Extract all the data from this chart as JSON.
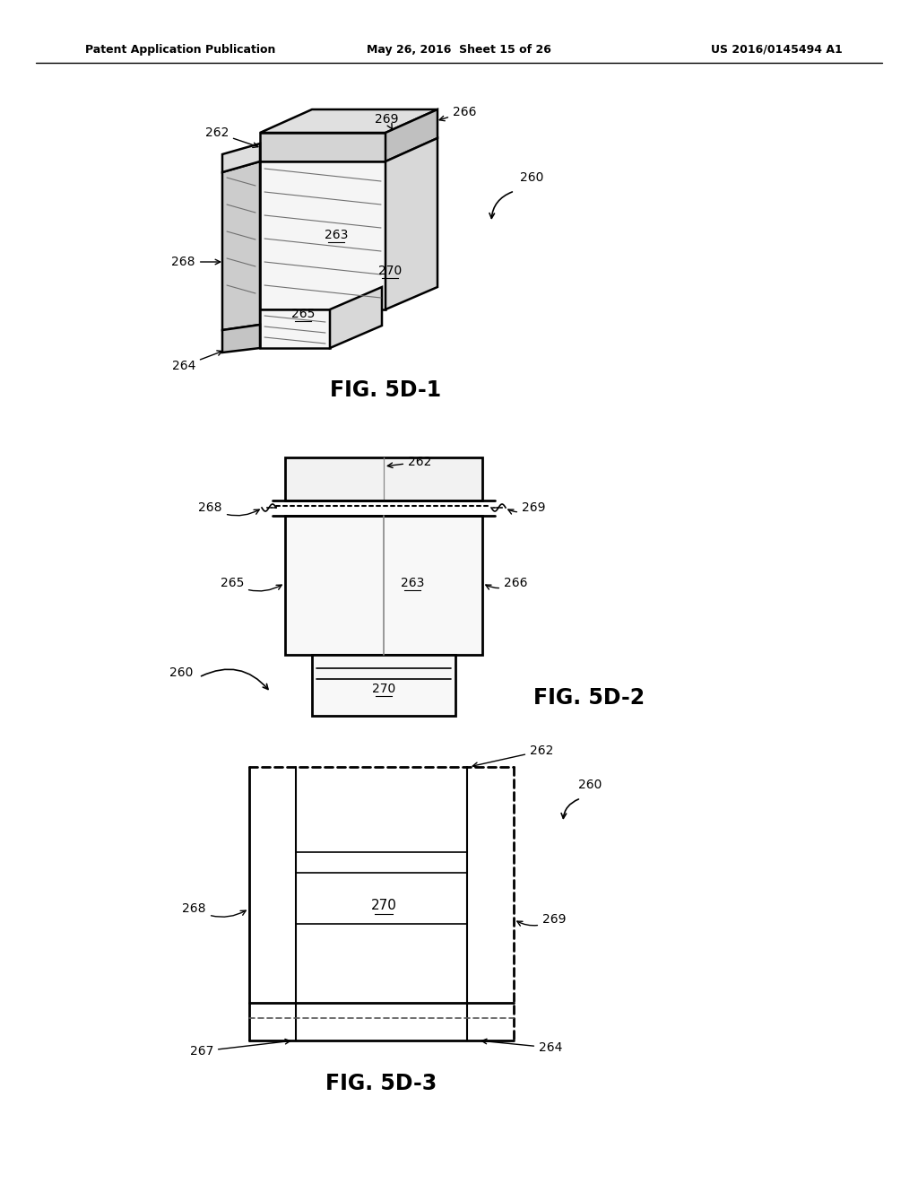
{
  "title_left": "Patent Application Publication",
  "title_mid": "May 26, 2016  Sheet 15 of 26",
  "title_right": "US 2016/0145494 A1",
  "fig1_label": "FIG. 5D-1",
  "fig2_label": "FIG. 5D-2",
  "fig3_label": "FIG. 5D-3",
  "bg_color": "#ffffff",
  "line_color": "#000000"
}
